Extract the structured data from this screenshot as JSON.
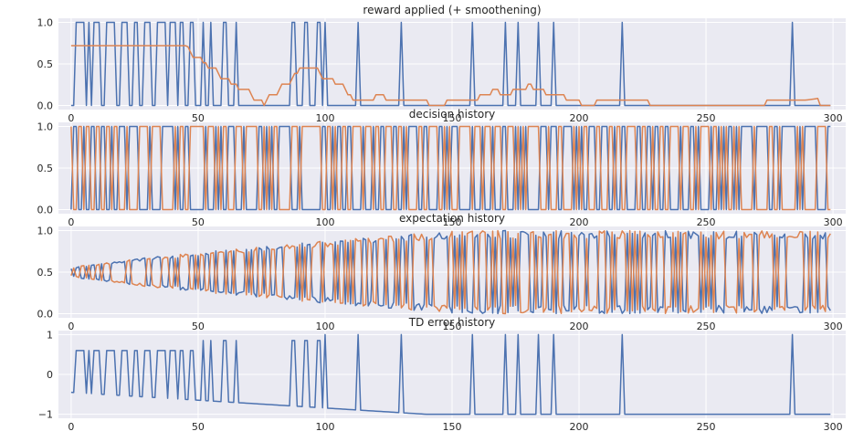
{
  "colors": {
    "series_blue": "#4c72b0",
    "series_orange": "#dd8452",
    "panel_bg": "#eaeaf2",
    "grid": "#ffffff"
  },
  "chart_data": [
    {
      "type": "line",
      "title": "reward applied (+ smoothening)",
      "xlim": [
        -5,
        305
      ],
      "ylim": [
        -0.05,
        1.05
      ],
      "xticks": [
        0,
        50,
        100,
        150,
        200,
        250,
        300
      ],
      "yticks": [
        0.0,
        0.5,
        1.0
      ],
      "ytick_labels": [
        "0.0",
        "0.5",
        "1.0"
      ],
      "grid": true,
      "series": [
        {
          "color": "#4c72b0",
          "generator": "reward_spikes",
          "points": 300
        },
        {
          "color": "#dd8452",
          "generator": "reward_smoothed",
          "points": 300
        }
      ]
    },
    {
      "type": "line",
      "title": "decision history",
      "xlim": [
        -5,
        305
      ],
      "ylim": [
        -0.05,
        1.05
      ],
      "xticks": [
        0,
        50,
        100,
        150,
        200,
        250,
        300
      ],
      "yticks": [
        0.0,
        0.5,
        1.0
      ],
      "ytick_labels": [
        "0.0",
        "0.5",
        "1.0"
      ],
      "grid": true,
      "series": [
        {
          "color": "#4c72b0",
          "generator": "decision",
          "points": 300
        },
        {
          "color": "#dd8452",
          "generator": "decision_complement",
          "points": 300
        }
      ]
    },
    {
      "type": "line",
      "title": "expectation history",
      "xlim": [
        -5,
        305
      ],
      "ylim": [
        -0.05,
        1.05
      ],
      "xticks": [
        0,
        50,
        100,
        150,
        200,
        250,
        300
      ],
      "yticks": [
        0.0,
        0.5,
        1.0
      ],
      "ytick_labels": [
        "0.0",
        "0.5",
        "1.0"
      ],
      "grid": true,
      "series": [
        {
          "color": "#4c72b0",
          "generator": "expectation",
          "points": 300
        },
        {
          "color": "#dd8452",
          "generator": "expectation_complement",
          "points": 300
        }
      ]
    },
    {
      "type": "line",
      "title": "TD error history",
      "xlim": [
        -5,
        305
      ],
      "ylim": [
        -1.1,
        1.1
      ],
      "xticks": [
        0,
        50,
        100,
        150,
        200,
        250,
        300
      ],
      "yticks": [
        -1,
        0,
        1
      ],
      "ytick_labels": [
        "−1",
        "0",
        "1"
      ],
      "grid": true,
      "series": [
        {
          "color": "#4c72b0",
          "generator": "td_error",
          "points": 300
        }
      ]
    }
  ]
}
